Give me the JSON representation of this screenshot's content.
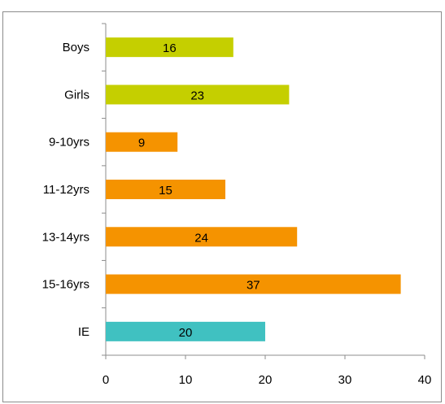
{
  "chart_data": {
    "type": "bar",
    "orientation": "horizontal",
    "title": "",
    "categories": [
      "Boys",
      "Girls",
      "9-10yrs",
      "11-12yrs",
      "13-14yrs",
      "15-16yrs",
      "IE"
    ],
    "values": [
      16,
      23,
      9,
      15,
      24,
      37,
      20
    ],
    "colors": [
      "#c5cf00",
      "#c5cf00",
      "#f59300",
      "#f59300",
      "#f59300",
      "#f59300",
      "#40c1c1"
    ],
    "xlim": [
      0,
      40
    ],
    "x_ticks": [
      0,
      10,
      20,
      30,
      40
    ],
    "data_labels": true,
    "grid": false,
    "legend": "none",
    "xlabel": "",
    "ylabel": ""
  }
}
